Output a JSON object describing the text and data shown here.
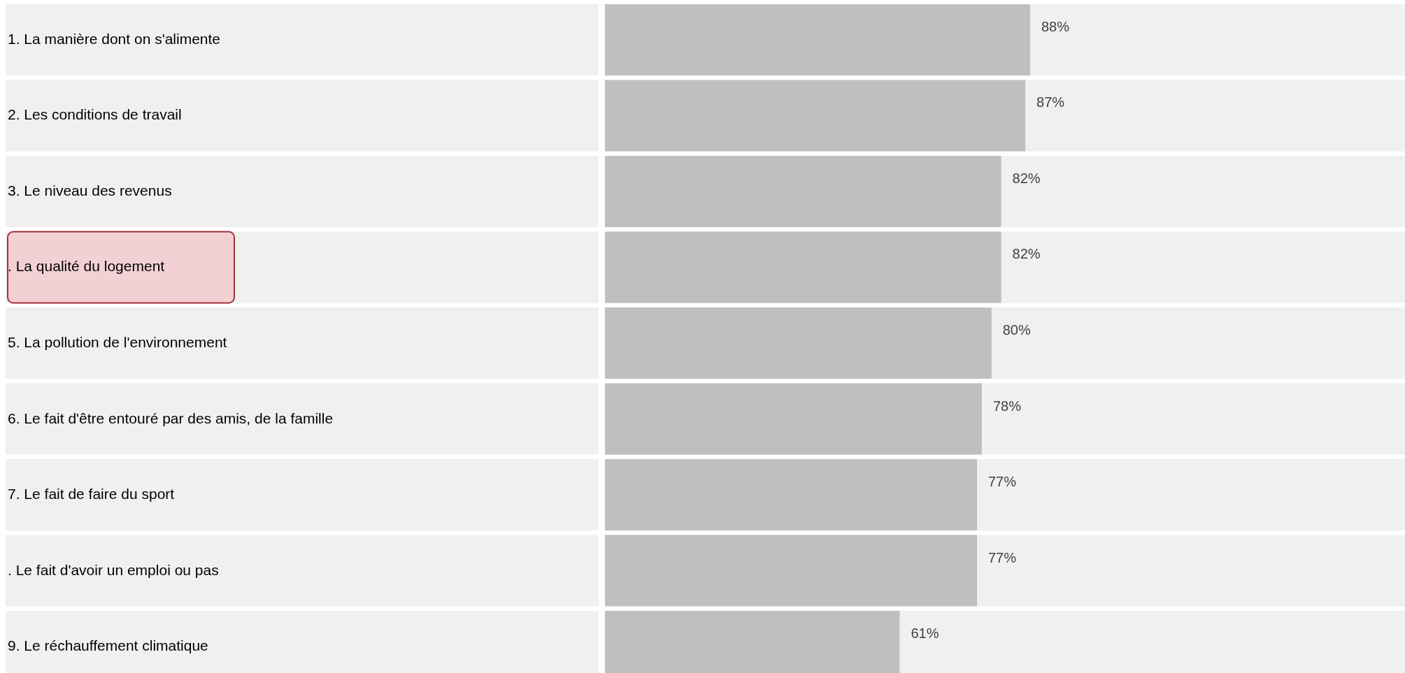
{
  "chart_data": {
    "type": "bar",
    "orientation": "horizontal",
    "color": "#bfbfbf",
    "categories": [
      "1. La manière dont on s'alimente",
      "2. Les conditions de travail",
      "3. Le niveau des revenus",
      ". La qualité du logement",
      "5. La pollution de l'environnement",
      "6. Le fait d'être entouré par des amis, de la famille",
      "7. Le fait de faire du sport",
      ". Le fait d'avoir un emploi ou pas",
      "9. Le réchauffement climatique"
    ],
    "values": [
      88,
      87,
      82,
      82,
      80,
      78,
      77,
      77,
      61
    ],
    "value_labels": [
      "88%",
      "87%",
      "82%",
      "82%",
      "80%",
      "78%",
      "77%",
      "77%",
      "61%"
    ]
  }
}
